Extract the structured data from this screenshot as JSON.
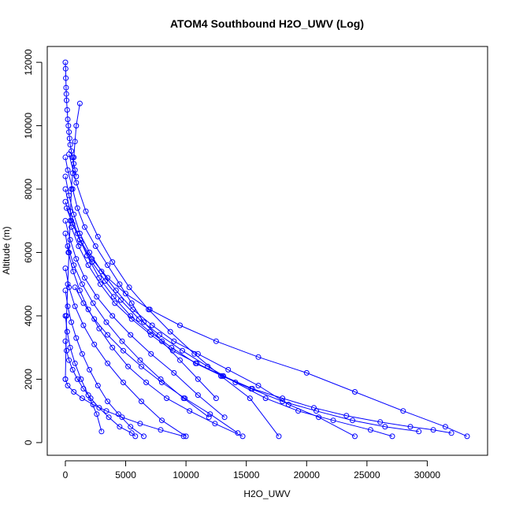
{
  "chart_data": {
    "type": "scatter",
    "title": "ATOM4 Southbound H2O_UWV (Log)",
    "xlabel": "H2O_UWV",
    "ylabel": "Altitude (m)",
    "xlim": [
      -1500,
      35000
    ],
    "ylim": [
      -400,
      12500
    ],
    "x_ticks": [
      0,
      5000,
      10000,
      15000,
      20000,
      25000,
      30000
    ],
    "y_ticks": [
      0,
      2000,
      4000,
      6000,
      8000,
      10000,
      12000
    ],
    "x_tick_labels": [
      "0",
      "5000",
      "10000",
      "15000",
      "20000",
      "25000",
      "30000"
    ],
    "y_tick_labels": [
      "0",
      "2000",
      "4000",
      "6000",
      "8000",
      "10000",
      "12000"
    ],
    "series_color": "#0000ff",
    "marker": "open-circle",
    "connected": true,
    "grid": false,
    "series": [
      {
        "x": [
          0,
          20,
          40,
          60,
          80,
          100,
          150,
          200,
          250,
          300,
          350,
          400,
          500,
          600,
          700,
          800,
          900
        ],
        "y": [
          12000,
          11800,
          11500,
          11200,
          11000,
          10800,
          10500,
          10200,
          10000,
          9800,
          9600,
          9400,
          9200,
          9000,
          8800,
          8600,
          8400
        ]
      },
      {
        "x": [
          1200,
          900,
          800,
          700,
          600,
          500,
          400,
          300,
          200,
          100,
          0
        ],
        "y": [
          10700,
          10000,
          9500,
          9000,
          8500,
          8000,
          7000,
          6000,
          5000,
          4000,
          2000
        ]
      },
      {
        "x": [
          0,
          200,
          600,
          1000,
          1600,
          2500,
          3500,
          4500,
          5500,
          6500,
          8000,
          9500,
          11000,
          12500
        ],
        "y": [
          9000,
          8600,
          8000,
          7400,
          6800,
          6200,
          5600,
          5000,
          4400,
          3800,
          3200,
          2600,
          2000,
          1400
        ]
      },
      {
        "x": [
          0,
          300,
          700,
          1200,
          2000,
          3000,
          4200,
          5600,
          7200,
          9000,
          11000,
          13500,
          16000,
          18500,
          21000,
          24000
        ],
        "y": [
          8400,
          7800,
          7200,
          6600,
          6000,
          5400,
          4800,
          4200,
          3700,
          3200,
          2800,
          2300,
          1800,
          1200,
          800,
          200
        ]
      },
      {
        "x": [
          0,
          500,
          1200,
          2200,
          3500,
          5000,
          7000,
          9500,
          12500,
          16000,
          20000,
          24000,
          28000,
          31500,
          33300
        ],
        "y": [
          7600,
          7000,
          6400,
          5800,
          5200,
          4700,
          4200,
          3700,
          3200,
          2700,
          2200,
          1600,
          1000,
          500,
          200
        ]
      },
      {
        "x": [
          0,
          400,
          900,
          1600,
          2600,
          3900,
          5400,
          7100,
          9000,
          11000,
          13200
        ],
        "y": [
          7000,
          6400,
          5800,
          5200,
          4600,
          4000,
          3400,
          2800,
          2200,
          1500,
          800
        ]
      },
      {
        "x": [
          200,
          700,
          1400,
          2300,
          3400,
          4700,
          6200,
          7900,
          9800,
          11900
        ],
        "y": [
          6200,
          5600,
          5000,
          4400,
          3800,
          3200,
          2600,
          2000,
          1400,
          800
        ]
      },
      {
        "x": [
          0,
          300,
          800,
          1500,
          2400,
          3500,
          4800,
          6300,
          8000,
          10000
        ],
        "y": [
          5500,
          4900,
          4300,
          3700,
          3100,
          2500,
          1900,
          1300,
          700,
          200
        ]
      },
      {
        "x": [
          0,
          200,
          500,
          900,
          1400,
          2000,
          2700,
          3500,
          4400,
          5400,
          6500
        ],
        "y": [
          4800,
          4300,
          3800,
          3300,
          2800,
          2300,
          1800,
          1300,
          900,
          500,
          200
        ]
      },
      {
        "x": [
          0,
          150,
          400,
          800,
          1300,
          1900,
          2600,
          3000
        ],
        "y": [
          4000,
          3500,
          3000,
          2500,
          2000,
          1500,
          900,
          350
        ]
      },
      {
        "x": [
          100,
          600,
          1300,
          2200,
          3300,
          4600,
          6100,
          7800,
          9700,
          11800,
          14100,
          16600,
          19300,
          22200,
          25300,
          27100
        ],
        "y": [
          7400,
          6900,
          6300,
          5700,
          5100,
          4500,
          3900,
          3400,
          2900,
          2400,
          1900,
          1400,
          1000,
          700,
          400,
          200
        ]
      },
      {
        "x": [
          0,
          400,
          1000,
          1800,
          2800,
          4000,
          5400,
          7000,
          8800,
          10800,
          13000,
          15400,
          18000,
          20800,
          23800,
          26500,
          29300
        ],
        "y": [
          8000,
          7300,
          6600,
          5900,
          5200,
          4600,
          4000,
          3500,
          3000,
          2500,
          2100,
          1700,
          1300,
          1000,
          700,
          500,
          350
        ]
      },
      {
        "x": [
          0,
          250,
          650,
          1200,
          1900,
          2800,
          3900,
          5200,
          6700,
          8400,
          10300,
          12400,
          14700
        ],
        "y": [
          6600,
          6000,
          5400,
          4800,
          4200,
          3600,
          3000,
          2400,
          1900,
          1400,
          1000,
          600,
          200
        ]
      },
      {
        "x": [
          300,
          900,
          1700,
          2700,
          3900,
          5300,
          6900,
          8700,
          10700,
          12900,
          15300,
          17700
        ],
        "y": [
          9100,
          8200,
          7300,
          6500,
          5700,
          4900,
          4200,
          3500,
          2800,
          2100,
          1400,
          200
        ]
      },
      {
        "x": [
          0,
          100,
          300,
          600,
          1000,
          1500,
          2100,
          2800,
          3600,
          4500,
          5500,
          5800
        ],
        "y": [
          3200,
          2900,
          2600,
          2300,
          2000,
          1700,
          1400,
          1100,
          800,
          500,
          300,
          200
        ]
      },
      {
        "x": [
          500,
          1100,
          1900,
          2900,
          4100,
          5500,
          7100,
          8900,
          10900,
          13100,
          15500,
          18000,
          20600,
          23300,
          26100,
          28600,
          30500,
          32000
        ],
        "y": [
          6800,
          6200,
          5600,
          5000,
          4400,
          3900,
          3400,
          2900,
          2500,
          2100,
          1700,
          1400,
          1100,
          850,
          650,
          500,
          400,
          300
        ]
      },
      {
        "x": [
          0,
          200,
          700,
          1400,
          2300,
          3400,
          4700,
          6200,
          7900,
          9800
        ],
        "y": [
          2000,
          1800,
          1600,
          1400,
          1200,
          1000,
          800,
          600,
          400,
          200
        ]
      },
      {
        "x": [
          800,
          1500,
          2400,
          3500,
          4800,
          6300,
          8000,
          9900,
          12000,
          14300
        ],
        "y": [
          4900,
          4400,
          3900,
          3400,
          2900,
          2400,
          1900,
          1400,
          900,
          300
        ]
      }
    ]
  }
}
